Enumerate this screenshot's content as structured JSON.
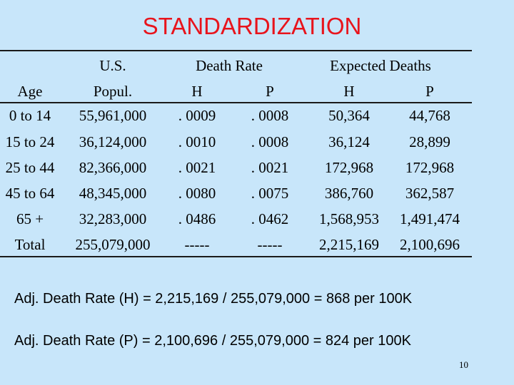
{
  "title": "STANDARDIZATION",
  "header": {
    "us": "U.S.",
    "death_rate": "Death  Rate",
    "expected_deaths": "Expected  Deaths",
    "age": "Age",
    "popul": "Popul.",
    "rate_h": "H",
    "rate_p": "P",
    "exp_h": "H",
    "exp_p": "P"
  },
  "rows": [
    [
      "0 to 14",
      "55,961,000",
      ". 0009",
      ". 0008",
      "50,364",
      "44,768"
    ],
    [
      "15 to 24",
      "36,124,000",
      ". 0010",
      ". 0008",
      "36,124",
      "28,899"
    ],
    [
      "25 to 44",
      "82,366,000",
      ". 0021",
      ". 0021",
      "172,968",
      "172,968"
    ],
    [
      "45 to 64",
      "48,345,000",
      ". 0080",
      ". 0075",
      "386,760",
      "362,587"
    ],
    [
      "65 +",
      "32,283,000",
      ". 0486",
      ". 0462",
      "1,568,953",
      "1,491,474"
    ],
    [
      "Total",
      "255,079,000",
      "-----",
      "-----",
      "2,215,169",
      "2,100,696"
    ]
  ],
  "notes": [
    "Adj. Death Rate (H) = 2,215,169 / 255,079,000 = 868 per 100K",
    "Adj. Death Rate (P) = 2,100,696 / 255,079,000 = 824 per 100K"
  ],
  "page_number": "10",
  "colors": {
    "background": "#c8e6fa",
    "title": "#e8141c"
  }
}
